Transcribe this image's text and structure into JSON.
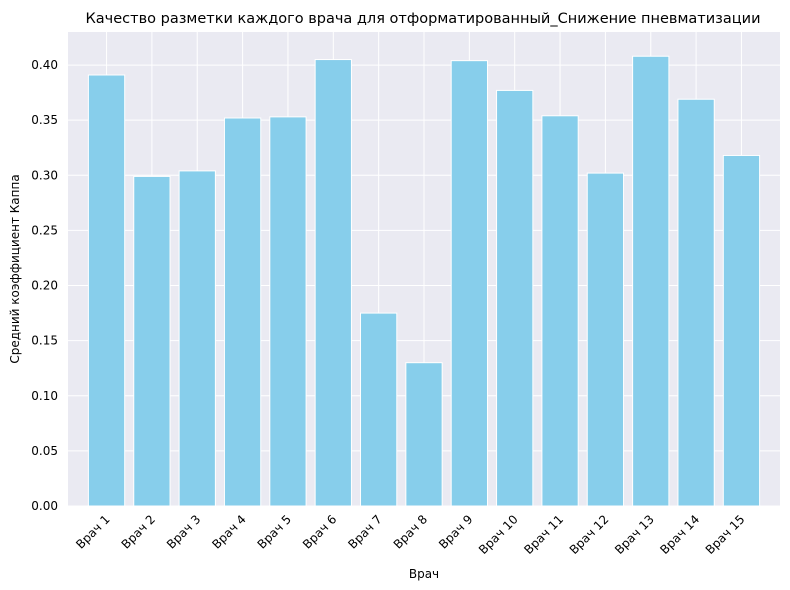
{
  "chart_data": {
    "type": "bar",
    "title": "Качество разметки каждого врача для отформатированный_Снижение пневматизации",
    "xlabel": "Врач",
    "ylabel": "Средний коэффициент Каппа",
    "categories": [
      "Врач 1",
      "Врач 2",
      "Врач 3",
      "Врач 4",
      "Врач 5",
      "Врач 6",
      "Врач 7",
      "Врач 8",
      "Врач 9",
      "Врач 10",
      "Врач 11",
      "Врач 12",
      "Врач 13",
      "Врач 14",
      "Врач 15"
    ],
    "values": [
      0.391,
      0.299,
      0.304,
      0.352,
      0.353,
      0.405,
      0.175,
      0.13,
      0.404,
      0.377,
      0.354,
      0.302,
      0.408,
      0.369,
      0.318
    ],
    "ylim": [
      0,
      0.43
    ],
    "yticks": [
      "0.00",
      "0.05",
      "0.10",
      "0.15",
      "0.20",
      "0.25",
      "0.30",
      "0.35",
      "0.40"
    ],
    "colors": {
      "bar": "#87CEEB",
      "plot_background": "#EAEAF2",
      "grid": "#FFFFFF"
    },
    "grid": true,
    "x_tick_rotation": 45
  }
}
